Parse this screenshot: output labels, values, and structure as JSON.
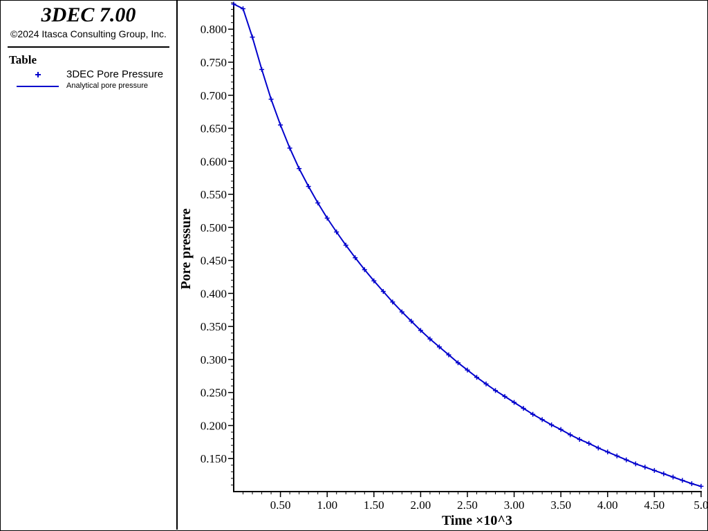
{
  "app": {
    "title": "3DEC 7.00",
    "copyright": "©2024 Itasca Consulting Group, Inc."
  },
  "legend": {
    "title": "Table",
    "entries": [
      {
        "label": "3DEC Pore Pressure",
        "marker": "plus",
        "color": "#0000cc"
      },
      {
        "label": "Analytical pore pressure",
        "marker": "line",
        "color": "#0000cc"
      }
    ]
  },
  "chart_data": {
    "type": "line",
    "title": "",
    "xlabel": "Time ×10^3",
    "ylabel": "Pore pressure",
    "xlim": [
      0,
      5.0
    ],
    "ylim": [
      0.1,
      0.84
    ],
    "x_ticks": [
      0.5,
      1.0,
      1.5,
      2.0,
      2.5,
      3.0,
      3.5,
      4.0,
      4.5,
      5.0
    ],
    "x_tick_labels": [
      "0.50",
      "1.00",
      "1.50",
      "2.00",
      "2.50",
      "3.00",
      "3.50",
      "4.00",
      "4.50",
      "5.0"
    ],
    "y_ticks": [
      0.15,
      0.2,
      0.25,
      0.3,
      0.35,
      0.4,
      0.45,
      0.5,
      0.55,
      0.6,
      0.65,
      0.7,
      0.75,
      0.8
    ],
    "y_tick_labels": [
      "0.150",
      "0.200",
      "0.250",
      "0.300",
      "0.350",
      "0.400",
      "0.450",
      "0.500",
      "0.550",
      "0.600",
      "0.650",
      "0.700",
      "0.750",
      "0.800"
    ],
    "grid": false,
    "legend_position": "left panel",
    "series": [
      {
        "name": "3DEC Pore Pressure",
        "style": "markers",
        "color": "#0000cc",
        "x": [
          0.0,
          0.1,
          0.2,
          0.3,
          0.4,
          0.5,
          0.6,
          0.7,
          0.8,
          0.9,
          1.0,
          1.1,
          1.2,
          1.3,
          1.4,
          1.5,
          1.6,
          1.7,
          1.8,
          1.9,
          2.0,
          2.1,
          2.2,
          2.3,
          2.4,
          2.5,
          2.6,
          2.7,
          2.8,
          2.9,
          3.0,
          3.1,
          3.2,
          3.3,
          3.4,
          3.5,
          3.6,
          3.7,
          3.8,
          3.9,
          4.0,
          4.1,
          4.2,
          4.3,
          4.4,
          4.5,
          4.6,
          4.7,
          4.8,
          4.9,
          5.0
        ],
        "y": [
          0.838,
          0.831,
          0.788,
          0.739,
          0.694,
          0.655,
          0.62,
          0.589,
          0.562,
          0.537,
          0.514,
          0.493,
          0.473,
          0.454,
          0.436,
          0.419,
          0.403,
          0.387,
          0.372,
          0.358,
          0.344,
          0.331,
          0.319,
          0.307,
          0.295,
          0.284,
          0.273,
          0.263,
          0.253,
          0.244,
          0.235,
          0.226,
          0.217,
          0.209,
          0.201,
          0.194,
          0.186,
          0.179,
          0.173,
          0.166,
          0.16,
          0.154,
          0.148,
          0.142,
          0.137,
          0.132,
          0.127,
          0.122,
          0.117,
          0.112,
          0.108
        ]
      },
      {
        "name": "Analytical pore pressure",
        "style": "line",
        "color": "#0000cc",
        "x": [
          0.0,
          0.1,
          0.2,
          0.3,
          0.4,
          0.5,
          0.6,
          0.7,
          0.8,
          0.9,
          1.0,
          1.1,
          1.2,
          1.3,
          1.4,
          1.5,
          1.6,
          1.7,
          1.8,
          1.9,
          2.0,
          2.1,
          2.2,
          2.3,
          2.4,
          2.5,
          2.6,
          2.7,
          2.8,
          2.9,
          3.0,
          3.1,
          3.2,
          3.3,
          3.4,
          3.5,
          3.6,
          3.7,
          3.8,
          3.9,
          4.0,
          4.1,
          4.2,
          4.3,
          4.4,
          4.5,
          4.6,
          4.7,
          4.8,
          4.9,
          5.0
        ],
        "y": [
          0.838,
          0.831,
          0.788,
          0.739,
          0.694,
          0.655,
          0.62,
          0.589,
          0.562,
          0.537,
          0.514,
          0.493,
          0.473,
          0.454,
          0.436,
          0.419,
          0.403,
          0.387,
          0.372,
          0.358,
          0.344,
          0.331,
          0.319,
          0.307,
          0.295,
          0.284,
          0.273,
          0.263,
          0.253,
          0.244,
          0.235,
          0.226,
          0.217,
          0.209,
          0.201,
          0.194,
          0.186,
          0.179,
          0.173,
          0.166,
          0.16,
          0.154,
          0.148,
          0.142,
          0.137,
          0.132,
          0.127,
          0.122,
          0.117,
          0.112,
          0.108
        ]
      }
    ]
  }
}
